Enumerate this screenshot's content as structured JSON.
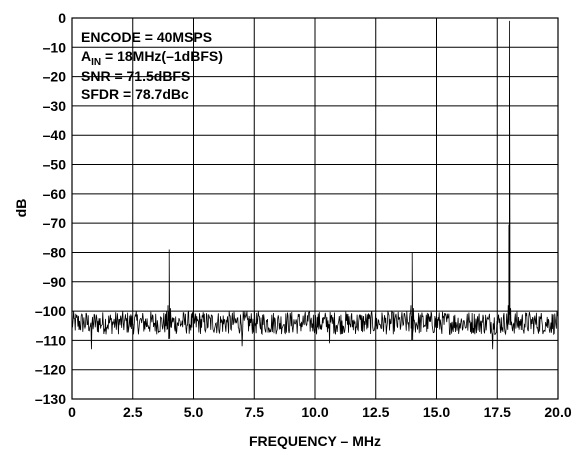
{
  "chart_data": {
    "type": "line",
    "title": "",
    "xlabel": "FREQUENCY – MHz",
    "ylabel": "dB",
    "xlim": [
      0,
      20
    ],
    "ylim": [
      -130,
      0
    ],
    "xticks": [
      0,
      2.5,
      5,
      7.5,
      10,
      12.5,
      15,
      17.5,
      20
    ],
    "xtick_labels": [
      "0",
      "2.5",
      "5.0",
      "7.5",
      "10.0",
      "12.5",
      "15.0",
      "17.5",
      "20.0"
    ],
    "yticks": [
      0,
      -10,
      -20,
      -30,
      -40,
      -50,
      -60,
      -70,
      -80,
      -90,
      -100,
      -110,
      -120,
      -130
    ],
    "ytick_labels": [
      "0",
      "–10",
      "–20",
      "–30",
      "–40",
      "–50",
      "–60",
      "–70",
      "–80",
      "–90",
      "–100",
      "–110",
      "–120",
      "–130"
    ],
    "grid": true,
    "line_color": "#000000",
    "annotations": [
      {
        "text": "ENCODE = 40MSPS"
      },
      {
        "text_main": "A",
        "text_sub": "IN",
        "text_rest": " = 18MHz(–1dBFS)"
      },
      {
        "text": "SNR = 71.5dBFS"
      },
      {
        "text": "SFDR = 78.7dBc"
      }
    ],
    "noise_floor_db": -104,
    "spurs": [
      {
        "x": 4.0,
        "y": -79
      },
      {
        "x": 14.0,
        "y": -80
      },
      {
        "x": 18.0,
        "y": -1
      }
    ],
    "min_dips": [
      {
        "x": 0.8,
        "y": -113
      },
      {
        "x": 7.0,
        "y": -112
      },
      {
        "x": 10.6,
        "y": -111
      },
      {
        "x": 17.3,
        "y": -113
      }
    ]
  }
}
